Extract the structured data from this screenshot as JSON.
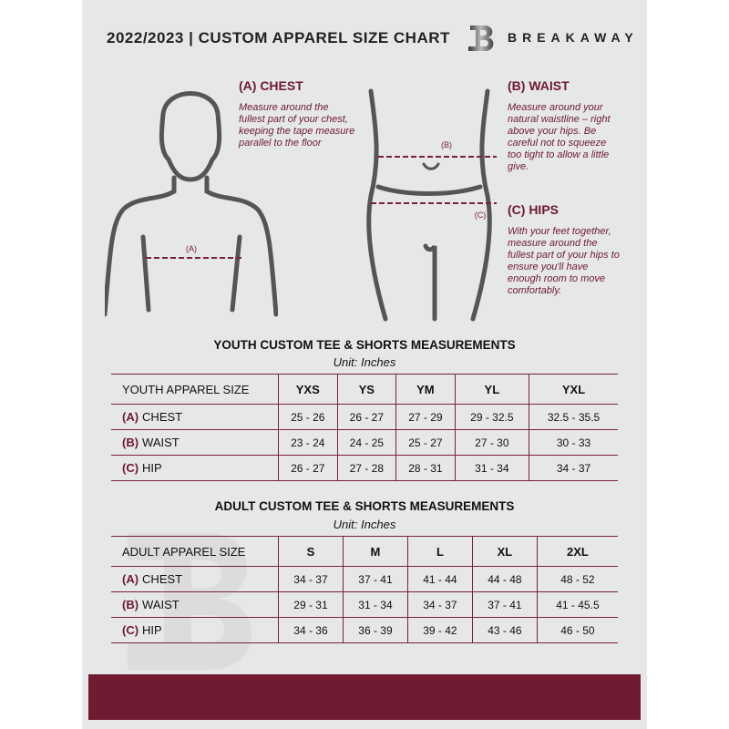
{
  "header": {
    "title": "2022/2023  |  CUSTOM APPAREL SIZE CHART",
    "brand": "BREAKAWAY",
    "logo_letter": "B"
  },
  "chest": {
    "heading": "(A) CHEST",
    "text": "Measure around the fullest part of your chest, keeping the tape measure parallel to the floor",
    "marker": "(A)"
  },
  "waist": {
    "heading": "(B) WAIST",
    "text": "Measure around your natural waistline – right above your hips. Be careful not to squeeze too tight to allow a little give.",
    "marker": "(B)"
  },
  "hips": {
    "heading": "(C) HIPS",
    "text": "With your feet together, measure around the fullest part of your hips to ensure you'll have enough room to move comfortably.",
    "marker": "(C)"
  },
  "youth": {
    "title": "YOUTH CUSTOM TEE & SHORTS MEASUREMENTS",
    "unit": "Unit: Inches",
    "size_label": "YOUTH APPAREL SIZE",
    "sizes": [
      "YXS",
      "YS",
      "YM",
      "YL",
      "YXL"
    ],
    "rows": [
      {
        "letter": "(A)",
        "name": "CHEST",
        "values": [
          "25 - 26",
          "26 - 27",
          "27 - 29",
          "29 - 32.5",
          "32.5 - 35.5"
        ]
      },
      {
        "letter": "(B)",
        "name": "WAIST",
        "values": [
          "23 - 24",
          "24 - 25",
          "25 - 27",
          "27 - 30",
          "30 - 33"
        ]
      },
      {
        "letter": "(C)",
        "name": "HIP",
        "values": [
          "26 - 27",
          "27 - 28",
          "28 - 31",
          "31 - 34",
          "34 - 37"
        ]
      }
    ]
  },
  "adult": {
    "title": "ADULT CUSTOM TEE & SHORTS MEASUREMENTS",
    "unit": "Unit: Inches",
    "size_label": "ADULT APPAREL SIZE",
    "sizes": [
      "S",
      "M",
      "L",
      "XL",
      "2XL"
    ],
    "rows": [
      {
        "letter": "(A)",
        "name": "CHEST",
        "values": [
          "34 - 37",
          "37 - 41",
          "41 - 44",
          "44 - 48",
          "48 - 52"
        ]
      },
      {
        "letter": "(B)",
        "name": "WAIST",
        "values": [
          "29 - 31",
          "31 - 34",
          "34 - 37",
          "37 - 41",
          "41 - 45.5"
        ]
      },
      {
        "letter": "(C)",
        "name": "HIP",
        "values": [
          "34 - 36",
          "36 - 39",
          "39 - 42",
          "43 - 46",
          "46 - 50"
        ]
      }
    ]
  },
  "colors": {
    "accent": "#701b31",
    "panel": "#e6e7e8"
  }
}
